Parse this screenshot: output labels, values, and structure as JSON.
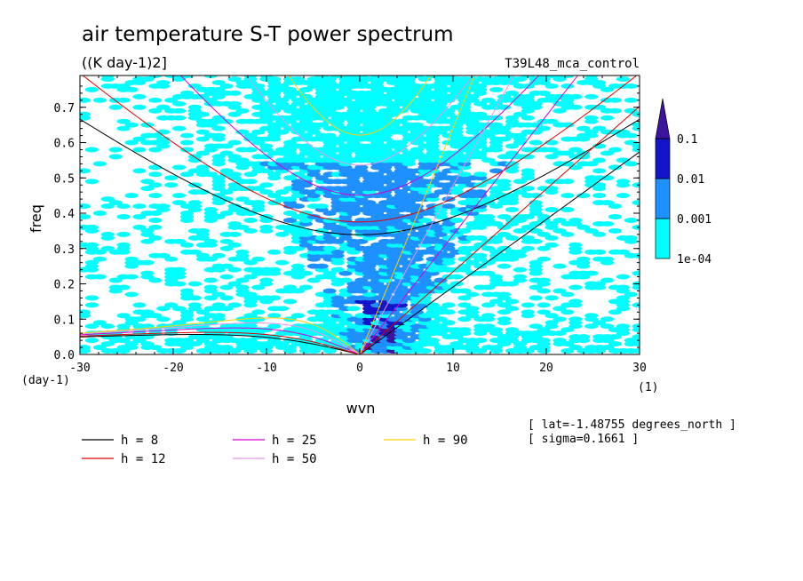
{
  "chart_data": {
    "type": "heatmap",
    "title": "air temperature S-T power spectrum",
    "subtitle": "((K day-1)2]",
    "run_label": "T39L48_mca_control",
    "xlabel": "wvn",
    "ylabel": "freq",
    "x_unit_label": "(1)",
    "y_unit_label": "(day-1)",
    "xlim": [
      -30,
      30
    ],
    "ylim": [
      0,
      0.79
    ],
    "x_ticks": [
      -30,
      -20,
      -10,
      0,
      10,
      20,
      30
    ],
    "x_tick_labels": [
      "-30",
      "-20",
      "-10",
      "0",
      "10",
      "20",
      "30"
    ],
    "y_ticks": [
      0,
      0.1,
      0.2,
      0.3,
      0.4,
      0.5,
      0.6,
      0.7
    ],
    "y_tick_labels": [
      "0.0",
      "0.1",
      "0.2",
      "0.3",
      "0.4",
      "0.5",
      "0.6",
      "0.7"
    ],
    "colorbar": {
      "levels": [
        "1e-04",
        "0.001",
        "0.01",
        "0.1"
      ],
      "colors": [
        "#00ffff",
        "#1e90ff",
        "#1414c8",
        "#3c14a0"
      ]
    },
    "dispersion_curves": [
      {
        "label": "h =  8",
        "h": 8,
        "color": "#000000"
      },
      {
        "label": "h = 12",
        "h": 12,
        "color": "#e00000"
      },
      {
        "label": "h = 25",
        "h": 25,
        "color": "#d400d4"
      },
      {
        "label": "h = 50",
        "h": 50,
        "color": "#e896e8"
      },
      {
        "label": "h = 90",
        "h": 90,
        "color": "#ffd000"
      }
    ],
    "annotations": [
      "[ lat=-1.48755 degrees_north ]",
      "[ sigma=0.1661 ]"
    ]
  }
}
